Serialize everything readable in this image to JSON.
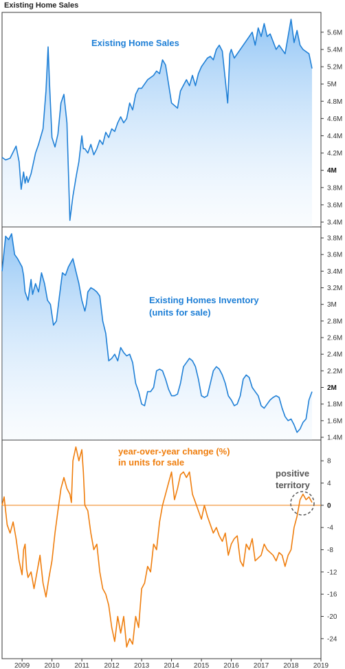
{
  "page_title": "Existing Home Sales",
  "colors": {
    "blue": "#1e7fd6",
    "orange": "#ef7d0c",
    "axis": "#333333",
    "circle": "#555555"
  },
  "chart_data": [
    {
      "type": "area",
      "annotation": "Existing Home Sales",
      "ylim": [
        3.4,
        5.75
      ],
      "yticks": [
        {
          "v": 3.4,
          "t": "3.4M"
        },
        {
          "v": 3.6,
          "t": "3.6M"
        },
        {
          "v": 3.8,
          "t": "3.8M"
        },
        {
          "v": 4.0,
          "t": "4M"
        },
        {
          "v": 4.2,
          "t": "4.2M"
        },
        {
          "v": 4.4,
          "t": "4.4M"
        },
        {
          "v": 4.6,
          "t": "4.6M"
        },
        {
          "v": 4.8,
          "t": "4.8M"
        },
        {
          "v": 5.0,
          "t": "5M"
        },
        {
          "v": 5.2,
          "t": "5.2M"
        },
        {
          "v": 5.4,
          "t": "5.4M"
        },
        {
          "v": 5.6,
          "t": "5.6M"
        }
      ],
      "x": [
        2008.33,
        2008.45,
        2008.6,
        2008.8,
        2008.9,
        2008.97,
        2009.05,
        2009.1,
        2009.15,
        2009.2,
        2009.3,
        2009.45,
        2009.55,
        2009.7,
        2009.8,
        2009.87,
        2009.92,
        2010.0,
        2010.1,
        2010.2,
        2010.3,
        2010.4,
        2010.5,
        2010.6,
        2010.7,
        2010.75,
        2010.82,
        2010.9,
        2011.0,
        2011.05,
        2011.1,
        2011.2,
        2011.3,
        2011.4,
        2011.5,
        2011.6,
        2011.7,
        2011.8,
        2011.9,
        2012.0,
        2012.1,
        2012.2,
        2012.3,
        2012.4,
        2012.5,
        2012.6,
        2012.7,
        2012.8,
        2012.9,
        2013.0,
        2013.2,
        2013.4,
        2013.5,
        2013.6,
        2013.7,
        2013.8,
        2014.0,
        2014.2,
        2014.3,
        2014.5,
        2014.6,
        2014.7,
        2014.8,
        2014.9,
        2015.0,
        2015.1,
        2015.2,
        2015.3,
        2015.4,
        2015.5,
        2015.6,
        2015.7,
        2015.8,
        2015.88,
        2015.95,
        2016.0,
        2016.1,
        2016.3,
        2016.5,
        2016.7,
        2016.8,
        2016.9,
        2017.0,
        2017.1,
        2017.2,
        2017.3,
        2017.5,
        2017.6,
        2017.8,
        2018.0,
        2018.1,
        2018.2,
        2018.3,
        2018.4,
        2018.6,
        2018.7
      ],
      "y": [
        4.15,
        4.12,
        4.14,
        4.28,
        4.1,
        3.78,
        3.98,
        3.85,
        3.93,
        3.86,
        3.96,
        4.2,
        4.3,
        4.48,
        4.92,
        5.43,
        5.0,
        4.38,
        4.27,
        4.42,
        4.78,
        4.88,
        4.55,
        3.42,
        3.7,
        3.8,
        3.95,
        4.1,
        4.4,
        4.25,
        4.25,
        4.2,
        4.3,
        4.18,
        4.25,
        4.35,
        4.3,
        4.44,
        4.38,
        4.48,
        4.45,
        4.55,
        4.62,
        4.55,
        4.6,
        4.78,
        4.7,
        4.88,
        4.95,
        4.95,
        5.05,
        5.1,
        5.15,
        5.12,
        5.28,
        5.22,
        4.78,
        4.72,
        4.92,
        5.05,
        4.98,
        5.1,
        4.98,
        5.12,
        5.2,
        5.25,
        5.3,
        5.32,
        5.28,
        5.4,
        5.45,
        5.38,
        5.05,
        4.78,
        5.35,
        5.4,
        5.3,
        5.4,
        5.5,
        5.6,
        5.45,
        5.65,
        5.55,
        5.7,
        5.55,
        5.58,
        5.4,
        5.45,
        5.35,
        5.75,
        5.48,
        5.62,
        5.45,
        5.4,
        5.35,
        5.18
      ]
    },
    {
      "type": "area",
      "annotation": [
        "Existing Homes Inventory",
        "(units for sale)"
      ],
      "ylim": [
        1.4,
        3.85
      ],
      "yticks": [
        {
          "v": 1.4,
          "t": "1.4M"
        },
        {
          "v": 1.6,
          "t": "1.6M"
        },
        {
          "v": 1.8,
          "t": "1.8M"
        },
        {
          "v": 2.0,
          "t": "2M"
        },
        {
          "v": 2.2,
          "t": "2.2M"
        },
        {
          "v": 2.4,
          "t": "2.4M"
        },
        {
          "v": 2.6,
          "t": "2.6M"
        },
        {
          "v": 2.8,
          "t": "2.8M"
        },
        {
          "v": 3.0,
          "t": "3M"
        },
        {
          "v": 3.2,
          "t": "3.2M"
        },
        {
          "v": 3.4,
          "t": "3.4M"
        },
        {
          "v": 3.6,
          "t": "3.6M"
        },
        {
          "v": 3.8,
          "t": "3.8M"
        }
      ],
      "x": [
        2008.33,
        2008.45,
        2008.55,
        2008.65,
        2008.75,
        2008.85,
        2009.0,
        2009.05,
        2009.1,
        2009.2,
        2009.3,
        2009.35,
        2009.45,
        2009.55,
        2009.65,
        2009.75,
        2009.85,
        2009.95,
        2010.05,
        2010.15,
        2010.25,
        2010.35,
        2010.45,
        2010.55,
        2010.7,
        2010.8,
        2010.9,
        2011.0,
        2011.1,
        2011.15,
        2011.2,
        2011.3,
        2011.4,
        2011.5,
        2011.6,
        2011.7,
        2011.8,
        2011.9,
        2012.0,
        2012.1,
        2012.2,
        2012.3,
        2012.4,
        2012.5,
        2012.6,
        2012.7,
        2012.8,
        2012.9,
        2013.0,
        2013.1,
        2013.2,
        2013.3,
        2013.4,
        2013.5,
        2013.6,
        2013.7,
        2013.8,
        2013.9,
        2014.0,
        2014.1,
        2014.2,
        2014.3,
        2014.4,
        2014.5,
        2014.6,
        2014.7,
        2014.8,
        2014.9,
        2015.0,
        2015.1,
        2015.2,
        2015.3,
        2015.4,
        2015.5,
        2015.6,
        2015.7,
        2015.8,
        2015.9,
        2016.0,
        2016.1,
        2016.2,
        2016.3,
        2016.4,
        2016.5,
        2016.6,
        2016.7,
        2016.8,
        2016.9,
        2017.0,
        2017.1,
        2017.2,
        2017.3,
        2017.4,
        2017.5,
        2017.6,
        2017.7,
        2017.8,
        2017.9,
        2018.0,
        2018.1,
        2018.2,
        2018.3,
        2018.4,
        2018.5,
        2018.6,
        2018.7
      ],
      "y": [
        3.4,
        3.82,
        3.78,
        3.85,
        3.6,
        3.55,
        3.45,
        3.35,
        3.15,
        3.05,
        3.3,
        3.12,
        3.25,
        3.15,
        3.38,
        3.25,
        3.05,
        3.0,
        2.75,
        2.8,
        3.1,
        3.38,
        3.35,
        3.45,
        3.55,
        3.4,
        3.25,
        3.05,
        2.92,
        3.0,
        3.15,
        3.2,
        3.18,
        3.15,
        3.1,
        2.8,
        2.65,
        2.32,
        2.35,
        2.4,
        2.32,
        2.48,
        2.42,
        2.38,
        2.4,
        2.3,
        2.05,
        1.95,
        1.8,
        1.78,
        1.95,
        1.95,
        2.0,
        2.2,
        2.22,
        2.2,
        2.1,
        1.98,
        1.9,
        1.9,
        1.92,
        2.05,
        2.25,
        2.3,
        2.35,
        2.32,
        2.25,
        2.1,
        1.9,
        1.88,
        1.9,
        2.05,
        2.2,
        2.25,
        2.22,
        2.15,
        2.05,
        1.9,
        1.85,
        1.78,
        1.8,
        1.9,
        2.1,
        2.15,
        2.12,
        2.0,
        1.95,
        1.9,
        1.78,
        1.75,
        1.8,
        1.85,
        1.88,
        1.9,
        1.88,
        1.75,
        1.65,
        1.6,
        1.62,
        1.55,
        1.46,
        1.5,
        1.58,
        1.62,
        1.85,
        1.95
      ]
    },
    {
      "type": "line",
      "annotation": [
        "year-over-year change (%)",
        "in units for sale"
      ],
      "callout": [
        "positive",
        "territory"
      ],
      "ylim": [
        -26,
        10.5
      ],
      "zero_line": true,
      "yticks": [
        {
          "v": 8,
          "t": "8"
        },
        {
          "v": 4,
          "t": "4"
        },
        {
          "v": 0,
          "t": "0"
        },
        {
          "v": -4,
          "t": "-4"
        },
        {
          "v": -8,
          "t": "-8"
        },
        {
          "v": -12,
          "t": "-12"
        },
        {
          "v": -16,
          "t": "-16"
        },
        {
          "v": -20,
          "t": "-20"
        },
        {
          "v": -24,
          "t": "-24"
        }
      ],
      "x": [
        2008.33,
        2008.4,
        2008.5,
        2008.6,
        2008.7,
        2008.8,
        2008.9,
        2009.0,
        2009.05,
        2009.1,
        2009.15,
        2009.2,
        2009.3,
        2009.4,
        2009.5,
        2009.6,
        2009.7,
        2009.8,
        2009.9,
        2010.0,
        2010.1,
        2010.2,
        2010.3,
        2010.4,
        2010.5,
        2010.6,
        2010.65,
        2010.7,
        2010.8,
        2010.9,
        2011.0,
        2011.05,
        2011.1,
        2011.2,
        2011.3,
        2011.4,
        2011.5,
        2011.6,
        2011.7,
        2011.8,
        2011.9,
        2012.0,
        2012.1,
        2012.2,
        2012.3,
        2012.4,
        2012.5,
        2012.6,
        2012.7,
        2012.8,
        2012.9,
        2013.0,
        2013.1,
        2013.2,
        2013.3,
        2013.4,
        2013.5,
        2013.6,
        2013.7,
        2013.8,
        2013.9,
        2014.0,
        2014.1,
        2014.2,
        2014.3,
        2014.4,
        2014.5,
        2014.6,
        2014.7,
        2014.8,
        2014.9,
        2015.0,
        2015.1,
        2015.2,
        2015.3,
        2015.4,
        2015.5,
        2015.6,
        2015.7,
        2015.8,
        2015.9,
        2016.0,
        2016.1,
        2016.2,
        2016.3,
        2016.4,
        2016.5,
        2016.6,
        2016.7,
        2016.8,
        2016.9,
        2017.0,
        2017.1,
        2017.2,
        2017.3,
        2017.4,
        2017.5,
        2017.6,
        2017.7,
        2017.8,
        2017.9,
        2018.0,
        2018.1,
        2018.2,
        2018.3,
        2018.4,
        2018.5,
        2018.6,
        2018.7
      ],
      "y": [
        0,
        1.5,
        -3.5,
        -5.0,
        -3.0,
        -6.0,
        -10.0,
        -12.5,
        -8.0,
        -7.0,
        -11.5,
        -13.0,
        -12.0,
        -15.0,
        -12.0,
        -9.0,
        -14.0,
        -16.5,
        -13.0,
        -10.0,
        -5.0,
        -1.0,
        3.0,
        5.0,
        3.0,
        2.0,
        0.5,
        8.0,
        10.5,
        8.0,
        10.0,
        6.0,
        0,
        -1.0,
        -5.0,
        -8.0,
        -7.0,
        -12.0,
        -15.0,
        -16.0,
        -18.0,
        -22.0,
        -24.5,
        -20.0,
        -23.0,
        -20.0,
        -25.5,
        -24.0,
        -25.0,
        -20.0,
        -22.0,
        -15.0,
        -14.0,
        -11.0,
        -12.0,
        -7.0,
        -8.0,
        -3.0,
        0,
        2.0,
        4.0,
        6.0,
        1.0,
        3.0,
        5.5,
        6.0,
        5.0,
        6.0,
        2.0,
        0.5,
        -1.0,
        -2.5,
        0,
        -2.0,
        -3.5,
        -5.0,
        -4.0,
        -5.5,
        -6.5,
        -5.0,
        -9.0,
        -7.0,
        -6.0,
        -5.5,
        -10.0,
        -11.0,
        -7.0,
        -8.0,
        -6.0,
        -10.0,
        -9.5,
        -9.0,
        -7.0,
        -8.0,
        -8.5,
        -9.0,
        -10.0,
        -8.5,
        -9.0,
        -11.0,
        -9.0,
        -8.0,
        -4.0,
        -2.0,
        1.0,
        2.0,
        1.0,
        1.5,
        0.5
      ]
    }
  ],
  "x_axis": {
    "ticks": [
      "2009",
      "2010",
      "2011",
      "2012",
      "2013",
      "2014",
      "2015",
      "2016",
      "2017",
      "2018",
      "2019"
    ]
  }
}
